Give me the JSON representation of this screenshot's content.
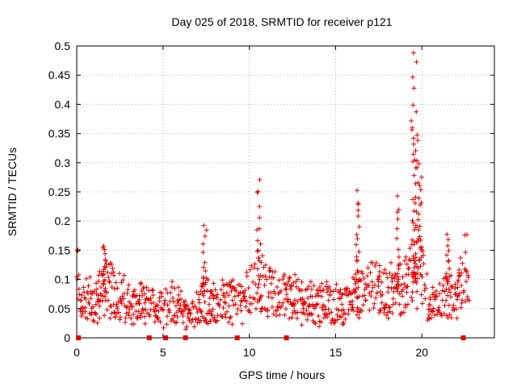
{
  "colors": {
    "series": "#e00000",
    "grid": "#b8b8b8",
    "axis": "#000000"
  },
  "chart_data": {
    "type": "scatter",
    "title": "Day 025 of 2018, SRMTID for receiver p121",
    "xlabel": "GPS time / hours",
    "ylabel": "SRMTID / TECUs",
    "xlim": [
      0,
      24.2
    ],
    "ylim": [
      0,
      0.5
    ],
    "grid": true,
    "xticks": [
      0,
      5,
      10,
      15,
      20
    ],
    "xtick_labels": [
      "0",
      "5",
      "10",
      "15",
      "20"
    ],
    "yticks": [
      0,
      0.05,
      0.1,
      0.15,
      0.2,
      0.25,
      0.3,
      0.35,
      0.4,
      0.45,
      0.5
    ],
    "ytick_labels": [
      "0",
      "0.05",
      "0.1",
      "0.15",
      "0.2",
      "0.25",
      "0.3",
      "0.35",
      "0.4",
      "0.45",
      "0.5"
    ],
    "series": [
      {
        "name": "SRMTID",
        "marker": "plus",
        "x_start": 0.0,
        "x_end": 22.75,
        "x_step": 0.04,
        "baseline": [
          [
            0.0,
            0.13
          ],
          [
            0.2,
            0.06
          ],
          [
            0.6,
            0.07
          ],
          [
            1.0,
            0.06
          ],
          [
            1.5,
            0.08
          ],
          [
            2.0,
            0.08
          ],
          [
            2.5,
            0.07
          ],
          [
            3.0,
            0.06
          ],
          [
            3.5,
            0.055
          ],
          [
            4.0,
            0.055
          ],
          [
            4.5,
            0.05
          ],
          [
            5.0,
            0.055
          ],
          [
            5.5,
            0.06
          ],
          [
            6.0,
            0.05
          ],
          [
            6.5,
            0.035
          ],
          [
            7.0,
            0.05
          ],
          [
            7.5,
            0.065
          ],
          [
            8.0,
            0.06
          ],
          [
            8.5,
            0.065
          ],
          [
            9.0,
            0.065
          ],
          [
            9.5,
            0.06
          ],
          [
            10.0,
            0.085
          ],
          [
            10.5,
            0.09
          ],
          [
            11.0,
            0.085
          ],
          [
            11.5,
            0.075
          ],
          [
            12.0,
            0.07
          ],
          [
            12.5,
            0.065
          ],
          [
            13.0,
            0.065
          ],
          [
            13.5,
            0.06
          ],
          [
            14.0,
            0.055
          ],
          [
            14.5,
            0.06
          ],
          [
            15.0,
            0.055
          ],
          [
            15.5,
            0.055
          ],
          [
            16.0,
            0.07
          ],
          [
            16.5,
            0.075
          ],
          [
            17.0,
            0.08
          ],
          [
            17.5,
            0.08
          ],
          [
            18.0,
            0.075
          ],
          [
            18.5,
            0.085
          ],
          [
            19.0,
            0.09
          ],
          [
            19.5,
            0.11
          ],
          [
            20.0,
            0.11
          ],
          [
            20.3,
            0.08
          ],
          [
            20.5,
            0.055
          ],
          [
            21.0,
            0.06
          ],
          [
            21.5,
            0.075
          ],
          [
            22.0,
            0.06
          ],
          [
            22.3,
            0.11
          ],
          [
            22.75,
            0.11
          ]
        ],
        "spikes": [
          {
            "x": 1.6,
            "y": 0.16
          },
          {
            "x": 7.4,
            "y": 0.19
          },
          {
            "x": 10.55,
            "y": 0.27
          },
          {
            "x": 16.3,
            "y": 0.25
          },
          {
            "x": 18.6,
            "y": 0.24
          },
          {
            "x": 19.5,
            "y": 0.49
          },
          {
            "x": 19.6,
            "y": 0.47
          },
          {
            "x": 19.7,
            "y": 0.35
          },
          {
            "x": 19.9,
            "y": 0.3
          },
          {
            "x": 21.5,
            "y": 0.18
          }
        ]
      }
    ],
    "gaps": [
      0.1,
      4.2,
      5.15,
      6.3,
      9.3,
      12.15,
      22.4
    ]
  }
}
